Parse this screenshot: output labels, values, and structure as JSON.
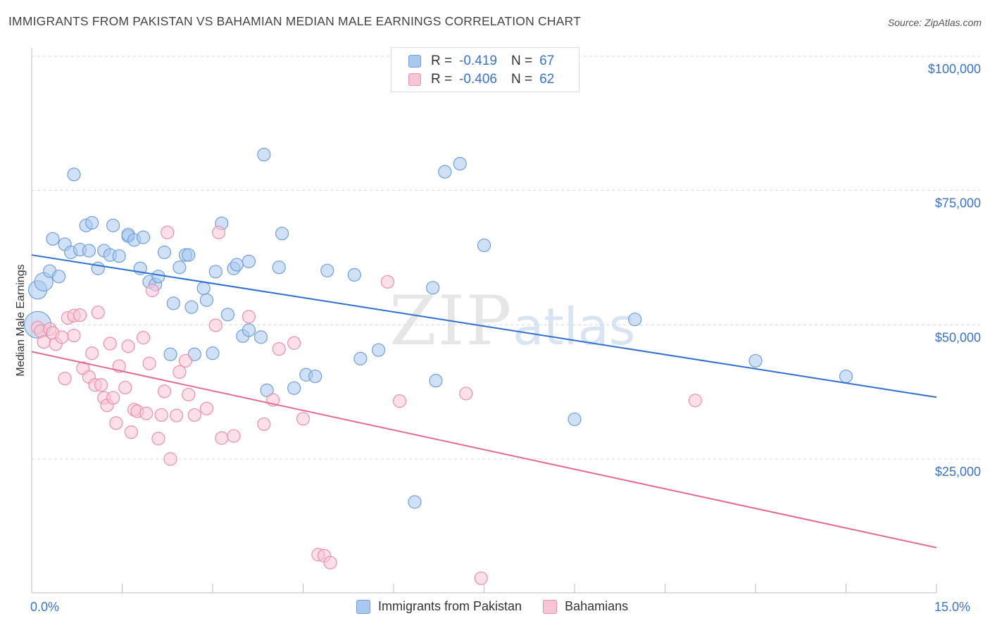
{
  "title": "IMMIGRANTS FROM PAKISTAN VS BAHAMIAN MEDIAN MALE EARNINGS CORRELATION CHART",
  "source": "Source: ZipAtlas.com",
  "watermark": {
    "zip": "ZIP",
    "atlas": "atlas"
  },
  "legend": {
    "rows": [
      {
        "r_label": "R =",
        "r_value": "-0.419",
        "n_label": "N =",
        "n_value": "67",
        "color": "#a9c8f0",
        "border": "#6f9fdc"
      },
      {
        "r_label": "R =",
        "r_value": "-0.406",
        "n_label": "N =",
        "n_value": "62",
        "color": "#f9c4d4",
        "border": "#ea8fae"
      }
    ]
  },
  "bottom_legend": [
    {
      "label": "Immigrants from Pakistan",
      "color": "#a9c8f0",
      "border": "#6f9fdc"
    },
    {
      "label": "Bahamians",
      "color": "#f9c4d4",
      "border": "#ea8fae"
    }
  ],
  "chart_data": {
    "type": "scatter",
    "title": "IMMIGRANTS FROM PAKISTAN VS BAHAMIAN MEDIAN MALE EARNINGS CORRELATION CHART",
    "xlabel": "",
    "ylabel": "Median Male Earnings",
    "xlim": [
      0,
      15
    ],
    "ylim": [
      0,
      105000
    ],
    "x_tick_labels": [
      "0.0%",
      "15.0%"
    ],
    "y_ticks": [
      25000,
      50000,
      75000,
      100000
    ],
    "y_tick_labels": [
      "$25,000",
      "$50,000",
      "$75,000",
      "$100,000"
    ],
    "grid": "horizontal dashed",
    "legend_position": "top-center",
    "series": [
      {
        "name": "Immigrants from Pakistan",
        "color": "#a9c8f0",
        "stroke": "#6f9fdc",
        "line_color": "#2f6fcf",
        "trend": {
          "x": [
            0,
            15
          ],
          "y": [
            63000,
            36500
          ]
        },
        "points": [
          [
            0.1,
            50000,
            "L"
          ],
          [
            0.1,
            56500,
            "M"
          ],
          [
            0.2,
            58000,
            "M"
          ],
          [
            0.3,
            60000
          ],
          [
            0.45,
            59000
          ],
          [
            0.35,
            66000
          ],
          [
            0.55,
            65000
          ],
          [
            0.65,
            63500
          ],
          [
            0.7,
            78000
          ],
          [
            0.8,
            64000
          ],
          [
            0.9,
            68500
          ],
          [
            0.95,
            63800
          ],
          [
            1.0,
            69000
          ],
          [
            1.1,
            60500
          ],
          [
            1.2,
            63800
          ],
          [
            1.3,
            63000
          ],
          [
            1.35,
            68500
          ],
          [
            1.45,
            62800
          ],
          [
            1.6,
            66500
          ],
          [
            1.6,
            66800
          ],
          [
            1.7,
            65800
          ],
          [
            1.8,
            60500
          ],
          [
            1.85,
            66300
          ],
          [
            1.95,
            58000
          ],
          [
            2.05,
            57500
          ],
          [
            2.1,
            59000
          ],
          [
            2.2,
            63500
          ],
          [
            2.35,
            54000
          ],
          [
            2.45,
            60700
          ],
          [
            2.55,
            63000
          ],
          [
            2.6,
            63000
          ],
          [
            2.3,
            44500
          ],
          [
            2.65,
            53300
          ],
          [
            2.7,
            44500
          ],
          [
            2.85,
            56800
          ],
          [
            2.9,
            54600
          ],
          [
            3.0,
            44700
          ],
          [
            3.05,
            59900
          ],
          [
            3.15,
            68900
          ],
          [
            3.25,
            51900
          ],
          [
            3.35,
            60500
          ],
          [
            3.4,
            61200
          ],
          [
            3.5,
            47900
          ],
          [
            3.6,
            61800
          ],
          [
            3.6,
            49000
          ],
          [
            3.8,
            47700
          ],
          [
            3.85,
            81700
          ],
          [
            3.9,
            37800
          ],
          [
            4.1,
            60700
          ],
          [
            4.15,
            67000
          ],
          [
            4.35,
            38200
          ],
          [
            4.55,
            40700
          ],
          [
            4.7,
            40400
          ],
          [
            4.9,
            60100
          ],
          [
            5.35,
            59300
          ],
          [
            5.45,
            43700
          ],
          [
            5.75,
            45300
          ],
          [
            6.35,
            17000
          ],
          [
            6.65,
            56900
          ],
          [
            6.7,
            39600
          ],
          [
            6.85,
            78500
          ],
          [
            7.1,
            80000
          ],
          [
            7.5,
            64800
          ],
          [
            9.0,
            32400
          ],
          [
            10.0,
            51000
          ],
          [
            12.0,
            43300
          ],
          [
            13.5,
            40400
          ]
        ]
      },
      {
        "name": "Bahamians",
        "color": "#f9c4d4",
        "stroke": "#ea8fae",
        "line_color": "#e26a96",
        "trend": {
          "x": [
            0,
            15
          ],
          "y": [
            45000,
            8500
          ]
        },
        "points": [
          [
            0.1,
            49500
          ],
          [
            0.15,
            48800
          ],
          [
            0.2,
            46800
          ],
          [
            0.3,
            49200
          ],
          [
            0.35,
            48500
          ],
          [
            0.4,
            46400
          ],
          [
            0.5,
            47700
          ],
          [
            0.55,
            40000
          ],
          [
            0.6,
            51300
          ],
          [
            0.7,
            51700
          ],
          [
            0.8,
            51800
          ],
          [
            0.85,
            41900
          ],
          [
            0.95,
            40300
          ],
          [
            1.0,
            44700
          ],
          [
            1.05,
            38800
          ],
          [
            1.1,
            52300
          ],
          [
            1.15,
            38800
          ],
          [
            1.2,
            36400
          ],
          [
            1.25,
            35000
          ],
          [
            1.3,
            46500
          ],
          [
            1.35,
            36400
          ],
          [
            1.4,
            31700
          ],
          [
            1.45,
            42300
          ],
          [
            1.55,
            38300
          ],
          [
            1.6,
            46000
          ],
          [
            1.65,
            30000
          ],
          [
            1.7,
            34200
          ],
          [
            1.75,
            33900
          ],
          [
            1.85,
            47600
          ],
          [
            1.9,
            33500
          ],
          [
            1.95,
            42800
          ],
          [
            2.0,
            56400
          ],
          [
            2.1,
            28800
          ],
          [
            2.15,
            33200
          ],
          [
            2.2,
            37600
          ],
          [
            2.25,
            67200
          ],
          [
            2.3,
            25000
          ],
          [
            2.4,
            33100
          ],
          [
            2.45,
            41200
          ],
          [
            2.55,
            43300
          ],
          [
            2.6,
            37000
          ],
          [
            2.7,
            33200
          ],
          [
            2.9,
            34400
          ],
          [
            3.05,
            49900
          ],
          [
            3.1,
            67200
          ],
          [
            3.15,
            28900
          ],
          [
            3.35,
            29300
          ],
          [
            3.6,
            51500
          ],
          [
            3.85,
            31500
          ],
          [
            4.0,
            36000
          ],
          [
            4.1,
            45500
          ],
          [
            4.35,
            46600
          ],
          [
            4.5,
            32500
          ],
          [
            4.75,
            7200
          ],
          [
            4.85,
            7000
          ],
          [
            4.95,
            5700
          ],
          [
            5.9,
            58000
          ],
          [
            6.1,
            35800
          ],
          [
            7.2,
            37200
          ],
          [
            7.45,
            2800
          ],
          [
            11.0,
            35900
          ],
          [
            0.7,
            48000
          ]
        ]
      }
    ]
  }
}
